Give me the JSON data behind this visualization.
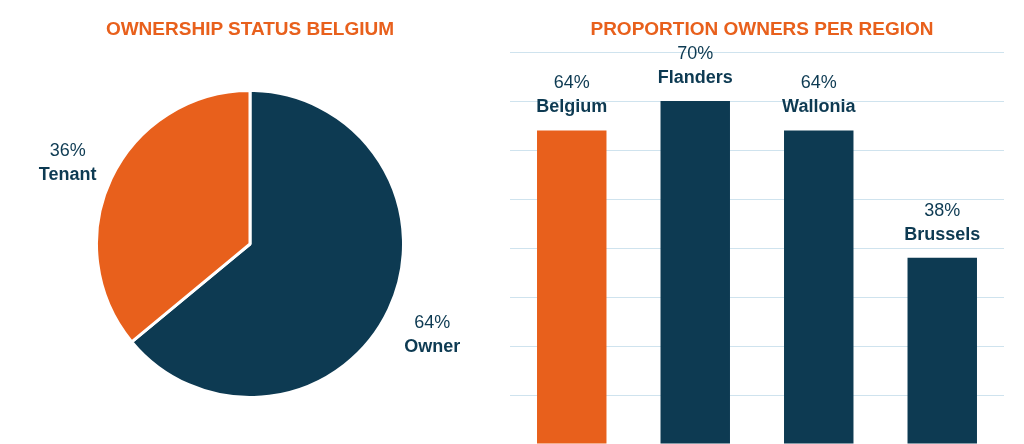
{
  "chart_data": [
    {
      "type": "pie",
      "title": "OWNERSHIP STATUS BELGIUM",
      "categories": [
        "Owner",
        "Tenant"
      ],
      "values": [
        64,
        36
      ],
      "value_labels": [
        "64%",
        "36%"
      ],
      "colors": [
        "#0d3a52",
        "#e8601c"
      ],
      "legend": false
    },
    {
      "type": "bar",
      "title": "PROPORTION OWNERS PER REGION",
      "categories": [
        "Belgium",
        "Flanders",
        "Wallonia",
        "Brussels"
      ],
      "values": [
        64,
        70,
        64,
        38
      ],
      "value_labels": [
        "64%",
        "70%",
        "64%",
        "38%"
      ],
      "colors": [
        "#e8601c",
        "#0d3a52",
        "#0d3a52",
        "#0d3a52"
      ],
      "grid": "y",
      "tick_labels": false,
      "legend": false
    }
  ]
}
